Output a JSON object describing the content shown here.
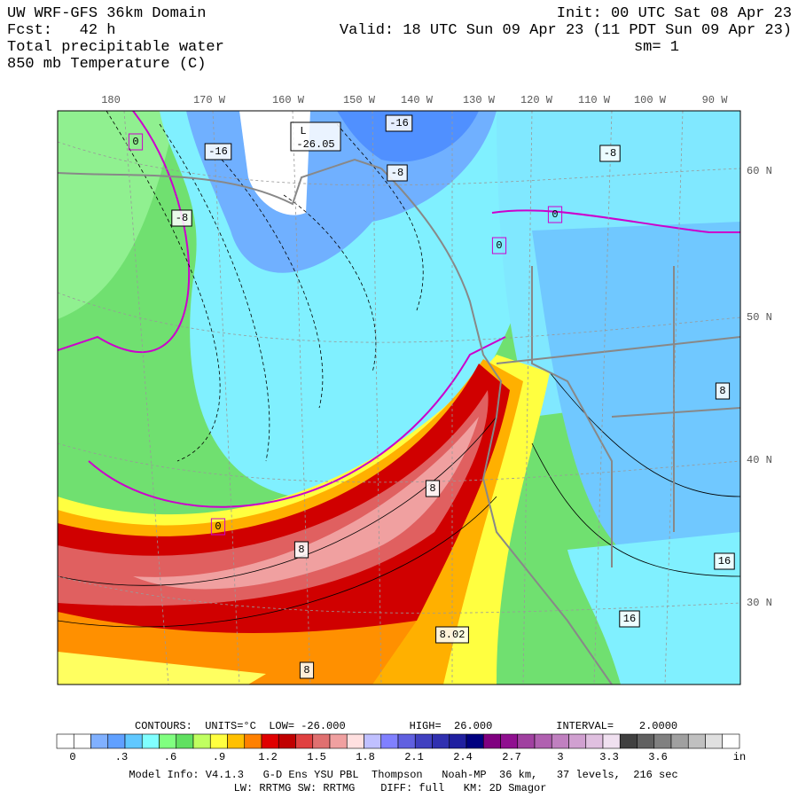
{
  "header": {
    "left": [
      "UW WRF-GFS 36km Domain",
      "Fcst:   42 h",
      "Total precipitable water",
      "850 mb Temperature (C)"
    ],
    "right": [
      "Init: 00 UTC Sat 08 Apr 23",
      "Valid: 18 UTC Sun 09 Apr 23 (11 PDT Sun 09 Apr 23)",
      "sm= 1"
    ]
  },
  "map": {
    "longitude_labels": [
      "180",
      "170 W",
      "160 W",
      "150 W",
      "140 W",
      "130 W",
      "120 W",
      "110 W",
      "100 W",
      "90 W"
    ],
    "latitude_labels": [
      "60 N",
      "50 N",
      "40 N",
      "30 N"
    ],
    "contour_labels": [
      "0",
      "-16",
      "L",
      "-26.05",
      "-16",
      "-8",
      "-8",
      "-8",
      "0",
      "0",
      "8",
      "0",
      "8",
      "8",
      "8.02",
      "16",
      "16",
      "8"
    ]
  },
  "colorbar": {
    "contours_line": "CONTOURS:  UNITS=°C  LOW= -26.000          HIGH=  26.000          INTERVAL=    2.0000",
    "labels": [
      "0",
      ".3",
      ".6",
      ".9",
      "1.2",
      "1.5",
      "1.8",
      "2.1",
      "2.4",
      "2.7",
      "3",
      "3.3",
      "3.6"
    ],
    "unit": "in"
  },
  "footer": [
    "Model Info: V4.1.3   G-D Ens YSU PBL  Thompson   Noah-MP  36 km,   37 levels,  216 sec",
    "LW: RRTMG SW: RRTMG    DIFF: full   KM: 2D Smagor"
  ]
}
